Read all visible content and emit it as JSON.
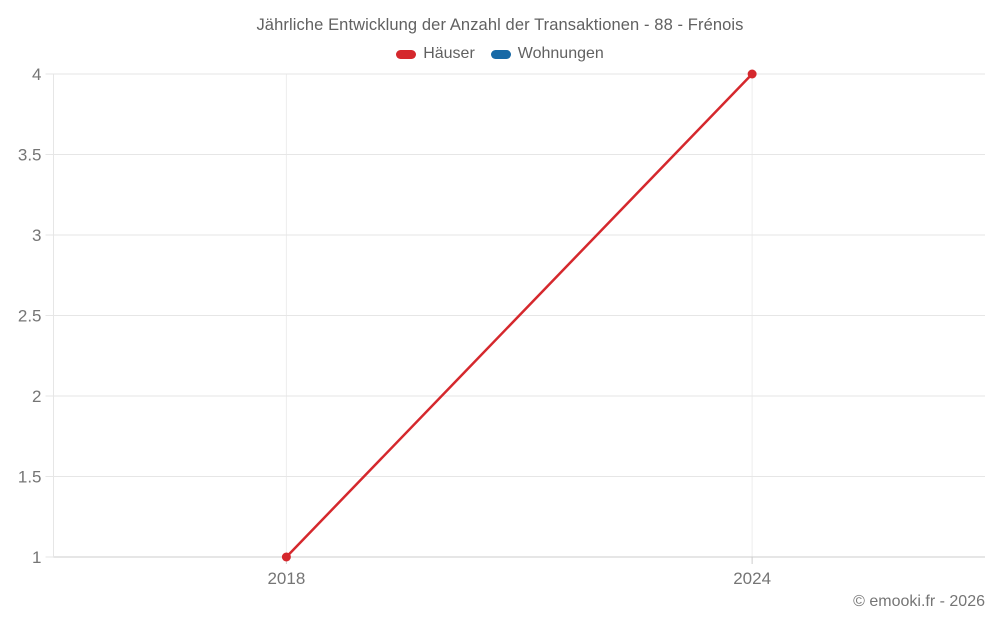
{
  "chart_data": {
    "type": "line",
    "title": "Jährliche Entwicklung der Anzahl der Transaktionen - 88 - Frénois",
    "x": [
      2018,
      2024
    ],
    "series": [
      {
        "name": "Häuser",
        "color": "#d5282d",
        "values": [
          1,
          4
        ]
      },
      {
        "name": "Wohnungen",
        "color": "#1769a6",
        "values": []
      }
    ],
    "xlim": [
      2015,
      2027
    ],
    "ylim": [
      1,
      4
    ],
    "yticks": [
      1,
      1.5,
      2,
      2.5,
      3,
      3.5,
      4
    ],
    "ytick_labels": [
      "1",
      "1.5",
      "2",
      "2.5",
      "3",
      "3.5",
      "4"
    ],
    "xticks": [
      2018,
      2024
    ],
    "xtick_labels": [
      "2018",
      "2024"
    ],
    "grid": true,
    "legend_position": "top",
    "xlabel": "",
    "ylabel": ""
  },
  "footer": {
    "copyright": "© emooki.fr - 2026"
  }
}
